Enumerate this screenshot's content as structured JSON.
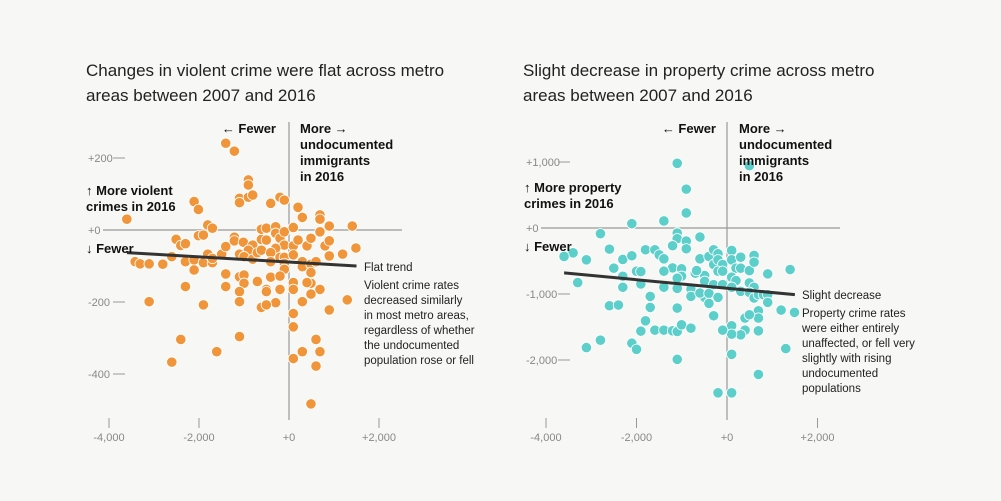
{
  "chart_data": [
    {
      "type": "scatter",
      "title_lines": [
        "Changes in violent crime were flat across metro",
        "areas between 2007 and 2016"
      ],
      "color": "#f0953a",
      "x_labels": {
        "left": "← Fewer",
        "right_lines": [
          "More →",
          "undocumented",
          "immigrants",
          "in 2016"
        ]
      },
      "y_labels": {
        "up_lines": [
          "↑ More violent",
          "crimes in 2016"
        ],
        "down": "↓ Fewer"
      },
      "xlim": [
        -4000,
        2500
      ],
      "ylim": [
        -500,
        280
      ],
      "x_ticks": [
        {
          "v": -4000,
          "t": "-4,000"
        },
        {
          "v": -2000,
          "t": "-2,000"
        },
        {
          "v": 0,
          "t": "+0"
        },
        {
          "v": 2000,
          "t": "+2,000"
        }
      ],
      "y_ticks": [
        {
          "v": 200,
          "t": "+200"
        },
        {
          "v": 0,
          "t": "+0"
        },
        {
          "v": -200,
          "t": "-200"
        },
        {
          "v": -400,
          "t": "-400"
        }
      ],
      "trend": [
        [
          -3600,
          -63
        ],
        [
          1500,
          -100
        ]
      ],
      "annotation_title": "Flat trend",
      "annotation_lines": [
        "Violent crime rates",
        "decreased similarly",
        "in most metro areas,",
        "regardless of whether",
        "the undocumented",
        "population rose or fell"
      ],
      "points": [
        [
          -1406,
          241
        ],
        [
          -1214,
          219
        ],
        [
          -903,
          139
        ],
        [
          -903,
          125
        ],
        [
          -1100,
          88
        ],
        [
          -1100,
          76
        ],
        [
          -903,
          91
        ],
        [
          -807,
          97
        ],
        [
          -2109,
          79
        ],
        [
          -2013,
          57
        ],
        [
          -3604,
          30
        ],
        [
          -407,
          74
        ],
        [
          -200,
          91
        ],
        [
          -104,
          83
        ],
        [
          200,
          63
        ],
        [
          296,
          35
        ],
        [
          688,
          42
        ],
        [
          688,
          30
        ],
        [
          895,
          11
        ],
        [
          1406,
          11
        ],
        [
          1487,
          -50
        ],
        [
          -1806,
          14
        ],
        [
          -1702,
          5
        ],
        [
          -2013,
          -16
        ],
        [
          -1902,
          -14
        ],
        [
          -2509,
          -26
        ],
        [
          -2405,
          -43
        ],
        [
          -2301,
          -38
        ],
        [
          -2605,
          -74
        ],
        [
          -3419,
          -88
        ],
        [
          -3308,
          -94
        ],
        [
          -3108,
          -94
        ],
        [
          -2805,
          -95
        ],
        [
          -2301,
          -88
        ],
        [
          -2109,
          -83
        ],
        [
          -2109,
          -111
        ],
        [
          -1902,
          -91
        ],
        [
          -1702,
          -91
        ],
        [
          -1806,
          -67
        ],
        [
          -1702,
          -79
        ],
        [
          -1495,
          -67
        ],
        [
          -1406,
          -46
        ],
        [
          -1214,
          -20
        ],
        [
          -1214,
          -30
        ],
        [
          -1014,
          -34
        ],
        [
          -807,
          -42
        ],
        [
          -903,
          -56
        ],
        [
          -1100,
          -67
        ],
        [
          -1000,
          -74
        ],
        [
          -807,
          -81
        ],
        [
          -703,
          -63
        ],
        [
          -614,
          -56
        ],
        [
          -614,
          -26
        ],
        [
          -503,
          -28
        ],
        [
          -614,
          2
        ],
        [
          -503,
          5
        ],
        [
          -296,
          9
        ],
        [
          -296,
          -9
        ],
        [
          -200,
          -23
        ],
        [
          -104,
          -5
        ],
        [
          -104,
          -42
        ],
        [
          -296,
          -51
        ],
        [
          -407,
          -63
        ],
        [
          -200,
          -76
        ],
        [
          -104,
          -76
        ],
        [
          -407,
          -88
        ],
        [
          -104,
          -93
        ],
        [
          -104,
          -109
        ],
        [
          96,
          7
        ],
        [
          96,
          -44
        ],
        [
          96,
          -69
        ],
        [
          200,
          -28
        ],
        [
          400,
          -44
        ],
        [
          488,
          -23
        ],
        [
          688,
          -5
        ],
        [
          800,
          -44
        ],
        [
          895,
          -30
        ],
        [
          895,
          -72
        ],
        [
          1191,
          -67
        ],
        [
          296,
          -88
        ],
        [
          296,
          -102
        ],
        [
          488,
          -95
        ],
        [
          600,
          -88
        ],
        [
          488,
          -118
        ],
        [
          488,
          -148
        ],
        [
          400,
          -146
        ],
        [
          688,
          -165
        ],
        [
          488,
          -178
        ],
        [
          96,
          -146
        ],
        [
          96,
          -165
        ],
        [
          296,
          -199
        ],
        [
          96,
          -232
        ],
        [
          96,
          -269
        ],
        [
          600,
          -304
        ],
        [
          688,
          -338
        ],
        [
          296,
          -338
        ],
        [
          96,
          -357
        ],
        [
          600,
          -378
        ],
        [
          488,
          -483
        ],
        [
          895,
          -222
        ],
        [
          1295,
          -194
        ],
        [
          -1406,
          -122
        ],
        [
          -1406,
          -157
        ],
        [
          -1100,
          -130
        ],
        [
          -1000,
          -125
        ],
        [
          -1000,
          -148
        ],
        [
          -1100,
          -171
        ],
        [
          -1100,
          -199
        ],
        [
          -703,
          -143
        ],
        [
          -503,
          -165
        ],
        [
          -503,
          -171
        ],
        [
          -407,
          -131
        ],
        [
          -200,
          -128
        ],
        [
          -200,
          -165
        ],
        [
          -296,
          -202
        ],
        [
          -614,
          -215
        ],
        [
          -503,
          -208
        ],
        [
          -2301,
          -157
        ],
        [
          -3108,
          -199
        ],
        [
          -1902,
          -208
        ],
        [
          -2405,
          -304
        ],
        [
          -2605,
          -367
        ],
        [
          -1606,
          -338
        ],
        [
          -1100,
          -296
        ]
      ]
    },
    {
      "type": "scatter",
      "title_lines": [
        "Slight decrease in property crime across metro",
        "areas between 2007 and 2016"
      ],
      "color": "#5ccfca",
      "x_labels": {
        "left": "← Fewer",
        "right_lines": [
          "More →",
          "undocumented",
          "immigrants",
          "in 2016"
        ]
      },
      "y_labels": {
        "up_lines": [
          "↑ More property",
          "crimes in 2016"
        ],
        "down": "↓ Fewer"
      },
      "xlim": [
        -4000,
        2500
      ],
      "ylim": [
        -2700,
        1300
      ],
      "x_ticks": [
        {
          "v": -4000,
          "t": "-4,000"
        },
        {
          "v": -2000,
          "t": "-2,000"
        },
        {
          "v": 0,
          "t": "+0"
        },
        {
          "v": 2000,
          "t": "+2,000"
        }
      ],
      "y_ticks": [
        {
          "v": 1000,
          "t": "+1,000"
        },
        {
          "v": 0,
          "t": "+0"
        },
        {
          "v": -1000,
          "t": "-1,000"
        },
        {
          "v": -2000,
          "t": "-2,000"
        }
      ],
      "trend": [
        [
          -3600,
          -680
        ],
        [
          1500,
          -1010
        ]
      ],
      "annotation_title": "Slight decrease",
      "annotation_lines": [
        "Property crime rates",
        "were either entirely",
        "unaffected, or fell very",
        "slightly with rising",
        "undocumented",
        "populations"
      ],
      "points": [
        [
          -1100,
          980
        ],
        [
          494,
          944
        ],
        [
          -900,
          589
        ],
        [
          -900,
          228
        ],
        [
          -2103,
          66
        ],
        [
          -1395,
          107
        ],
        [
          -2797,
          -86
        ],
        [
          -1100,
          -76
        ],
        [
          -1100,
          -162
        ],
        [
          -900,
          -198
        ],
        [
          -900,
          -315
        ],
        [
          -1203,
          -269
        ],
        [
          -598,
          -137
        ],
        [
          -2598,
          -320
        ],
        [
          -3402,
          -376
        ],
        [
          -3601,
          -431
        ],
        [
          -3107,
          -482
        ],
        [
          -2303,
          -477
        ],
        [
          -2103,
          -421
        ],
        [
          -1801,
          -330
        ],
        [
          -1594,
          -330
        ],
        [
          -1498,
          -406
        ],
        [
          -1395,
          -467
        ],
        [
          -2502,
          -609
        ],
        [
          -2303,
          -731
        ],
        [
          -2000,
          -655
        ],
        [
          -1904,
          -660
        ],
        [
          -3299,
          -827
        ],
        [
          -2303,
          -898
        ],
        [
          -1904,
          -848
        ],
        [
          -1697,
          -1036
        ],
        [
          -1697,
          -1203
        ],
        [
          -1801,
          -1406
        ],
        [
          -1904,
          -1563
        ],
        [
          -1594,
          -1548
        ],
        [
          -1395,
          -1548
        ],
        [
          -1203,
          -1558
        ],
        [
          -1100,
          -1568
        ],
        [
          -1004,
          -1467
        ],
        [
          -797,
          -1518
        ],
        [
          -2598,
          -1178
        ],
        [
          -2399,
          -1167
        ],
        [
          -2797,
          -1700
        ],
        [
          -3107,
          -1812
        ],
        [
          -2103,
          -1746
        ],
        [
          -2000,
          -1838
        ],
        [
          -1100,
          -1990
        ],
        [
          -1100,
          -1213
        ],
        [
          -1203,
          -604
        ],
        [
          -1004,
          -619
        ],
        [
          -1004,
          -731
        ],
        [
          -1100,
          -761
        ],
        [
          -1100,
          -914
        ],
        [
          -797,
          -924
        ],
        [
          -797,
          -1036
        ],
        [
          -1395,
          -655
        ],
        [
          -1395,
          -898
        ],
        [
          -701,
          -660
        ],
        [
          -701,
          -685
        ],
        [
          -598,
          -467
        ],
        [
          -494,
          -721
        ],
        [
          -494,
          -807
        ],
        [
          -494,
          -1051
        ],
        [
          -598,
          -985
        ],
        [
          -399,
          -990
        ],
        [
          -399,
          -431
        ],
        [
          -295,
          -330
        ],
        [
          -199,
          -391
        ],
        [
          -295,
          -553
        ],
        [
          -199,
          -482
        ],
        [
          -96,
          -553
        ],
        [
          -199,
          -655
        ],
        [
          -96,
          -655
        ],
        [
          -295,
          -858
        ],
        [
          -96,
          -858
        ],
        [
          -399,
          -1142
        ],
        [
          -199,
          -1051
        ],
        [
          -295,
          -1330
        ],
        [
          103,
          -340
        ],
        [
          103,
          -482
        ],
        [
          303,
          -442
        ],
        [
          199,
          -609
        ],
        [
          303,
          -609
        ],
        [
          103,
          -746
        ],
        [
          199,
          -797
        ],
        [
          103,
          -898
        ],
        [
          303,
          -959
        ],
        [
          494,
          -645
        ],
        [
          598,
          -416
        ],
        [
          598,
          -518
        ],
        [
          494,
          -832
        ],
        [
          598,
          -898
        ],
        [
          494,
          -975
        ],
        [
          598,
          -1061
        ],
        [
          694,
          -1010
        ],
        [
          804,
          -1010
        ],
        [
          900,
          -1010
        ],
        [
          900,
          -1127
        ],
        [
          694,
          -1254
        ],
        [
          694,
          -1365
        ],
        [
          398,
          -1365
        ],
        [
          494,
          -1315
        ],
        [
          398,
          -1548
        ],
        [
          303,
          -1619
        ],
        [
          103,
          -1482
        ],
        [
          103,
          -1609
        ],
        [
          -96,
          -1548
        ],
        [
          103,
          -1914
        ],
        [
          694,
          -1558
        ],
        [
          694,
          -2218
        ],
        [
          -199,
          -2497
        ],
        [
          103,
          -2497
        ],
        [
          900,
          -695
        ],
        [
          1395,
          -629
        ],
        [
          1196,
          -1244
        ],
        [
          1491,
          -1279
        ],
        [
          1299,
          -1827
        ],
        [
          -672,
          -645
        ]
      ]
    }
  ]
}
